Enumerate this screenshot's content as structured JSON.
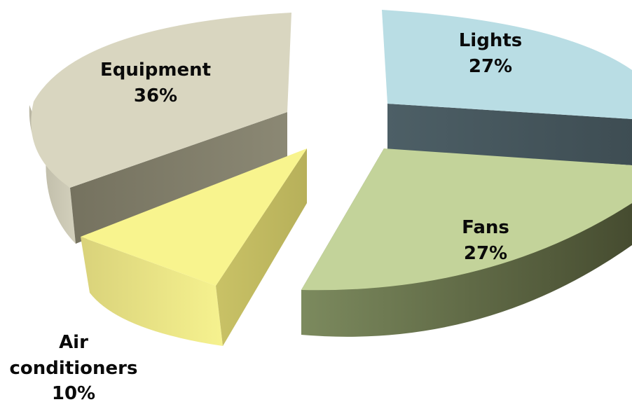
{
  "chart_data": {
    "type": "pie",
    "style": "3d-exploded",
    "slices": [
      {
        "label": "Lights",
        "value": 27,
        "percent_label": "27%",
        "color": "#b9dde4"
      },
      {
        "label": "Fans",
        "value": 27,
        "percent_label": "27%",
        "color": "#c3d39a"
      },
      {
        "label": "Air conditioners",
        "label_lines": [
          "Air",
          "conditioners"
        ],
        "value": 10,
        "percent_label": "10%",
        "color": "#f8f48e"
      },
      {
        "label": "Equipment",
        "value": 36,
        "percent_label": "36%",
        "color": "#d9d6c0"
      }
    ],
    "legend": "none",
    "grid": false
  }
}
